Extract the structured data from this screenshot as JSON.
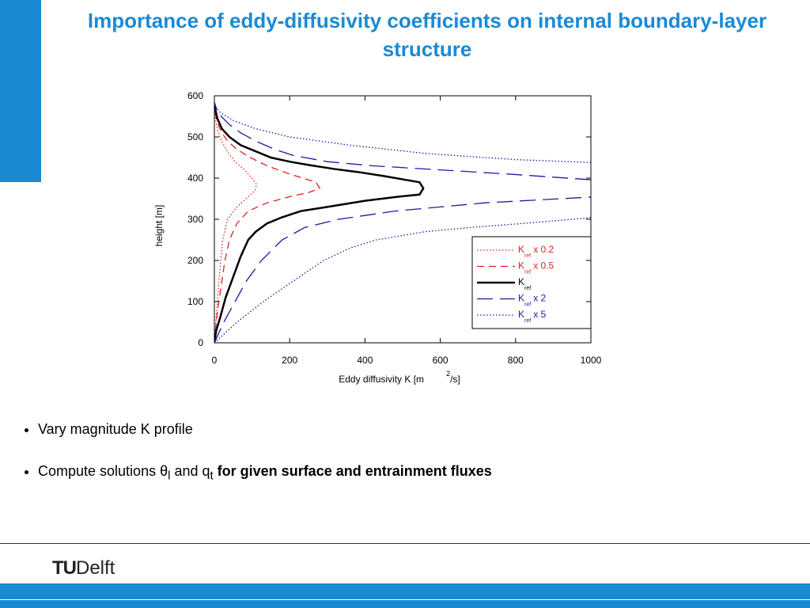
{
  "header": {
    "title": "Importance of eddy-diffusivity coefficients on internal boundary-layer structure"
  },
  "chart_data": {
    "type": "line",
    "xlabel": [
      "Eddy diffusivity K [m",
      "2",
      "/s]"
    ],
    "ylabel": "height [m]",
    "xlim": [
      0,
      1000
    ],
    "xticks": [
      0,
      200,
      400,
      600,
      800,
      1000
    ],
    "ylim": [
      0,
      600
    ],
    "yticks": [
      0,
      100,
      200,
      300,
      400,
      500,
      600
    ],
    "legend": "lower-right",
    "series": [
      {
        "name": [
          "K",
          "ref",
          "x 0.2"
        ],
        "color": "#e02020",
        "dash": "dotted",
        "x": [
          0,
          4,
          8,
          12,
          17,
          22,
          35,
          60,
          90,
          108,
          112,
          100,
          80,
          55,
          38,
          25,
          15,
          8,
          3,
          0
        ],
        "y": [
          0,
          50,
          100,
          150,
          200,
          250,
          300,
          330,
          355,
          370,
          385,
          400,
          420,
          440,
          460,
          480,
          500,
          520,
          545,
          570
        ]
      },
      {
        "name": [
          "K",
          "ref",
          "x 0.5"
        ],
        "color": "#e02020",
        "dash": "dashed",
        "x": [
          0,
          5,
          12,
          20,
          28,
          40,
          60,
          90,
          140,
          200,
          250,
          280,
          270,
          200,
          140,
          95,
          60,
          35,
          20,
          10,
          4,
          0
        ],
        "y": [
          0,
          50,
          100,
          150,
          200,
          250,
          290,
          320,
          340,
          355,
          365,
          375,
          390,
          410,
          430,
          450,
          470,
          490,
          510,
          530,
          550,
          575
        ]
      },
      {
        "name": [
          "K",
          "ref"
        ],
        "color": "#000000",
        "dash": "solid",
        "x": [
          0,
          5,
          15,
          30,
          50,
          70,
          90,
          110,
          140,
          180,
          230,
          300,
          400,
          490,
          545,
          555,
          545,
          450,
          380,
          320,
          250,
          200,
          150,
          110,
          70,
          40,
          20,
          8,
          3,
          0
        ],
        "y": [
          0,
          30,
          60,
          110,
          160,
          210,
          250,
          270,
          290,
          305,
          320,
          330,
          345,
          355,
          360,
          375,
          390,
          405,
          415,
          422,
          432,
          440,
          450,
          465,
          480,
          500,
          520,
          545,
          565,
          580
        ]
      },
      {
        "name": [
          "K",
          "ref",
          "x 2"
        ],
        "color": "#1a1aa8",
        "dash": "long-dashed",
        "x": [
          0,
          25,
          55,
          85,
          125,
          180,
          240,
          330,
          480,
          720,
          1000,
          null,
          1000,
          780,
          600,
          420,
          300,
          210,
          160,
          110,
          70,
          40,
          18,
          5,
          0
        ],
        "y": [
          0,
          50,
          100,
          150,
          200,
          250,
          280,
          300,
          320,
          340,
          354,
          null,
          396,
          410,
          420,
          430,
          440,
          455,
          470,
          490,
          510,
          530,
          550,
          570,
          585
        ]
      },
      {
        "name": [
          "K",
          "ref",
          "x 5"
        ],
        "color": "#1a1aa8",
        "dash": "dotted",
        "x": [
          0,
          60,
          130,
          210,
          290,
          360,
          430,
          560,
          680,
          820,
          950,
          1000,
          null,
          1000,
          800,
          560,
          360,
          200,
          110,
          50,
          15,
          0
        ],
        "y": [
          0,
          50,
          100,
          150,
          200,
          230,
          250,
          270,
          280,
          290,
          300,
          304,
          null,
          438,
          445,
          460,
          480,
          500,
          520,
          540,
          560,
          575
        ]
      }
    ]
  },
  "bullets": [
    [
      "Vary magnitude K profile"
    ],
    [
      "Compute solutions ",
      "θ",
      "l",
      " and q",
      "t",
      " for given surface and entrainment fluxes"
    ]
  ],
  "logo": [
    "TU",
    "Delft"
  ]
}
